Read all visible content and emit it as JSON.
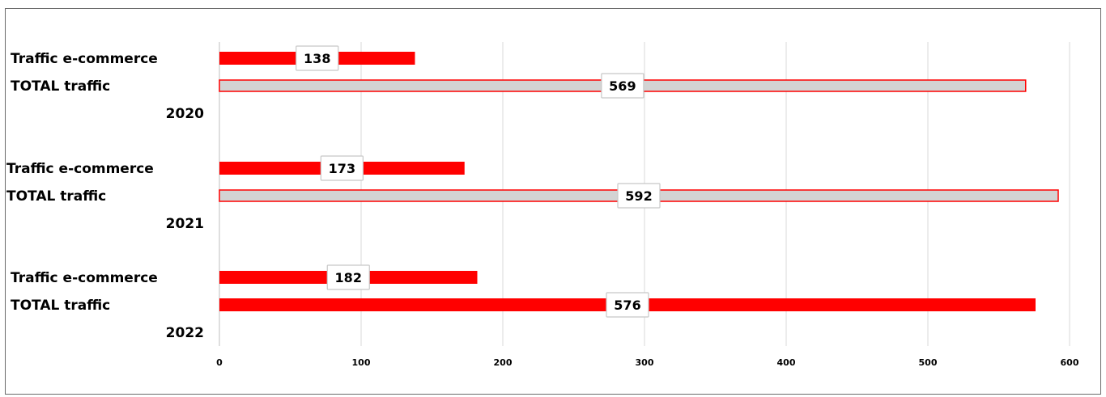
{
  "chart_data": {
    "type": "bar",
    "orientation": "horizontal",
    "xlim": [
      0,
      600
    ],
    "x_ticks": [
      0,
      100,
      200,
      300,
      400,
      500,
      600
    ],
    "grid": true,
    "groups": [
      {
        "year": "2020",
        "bars": [
          {
            "label": "Traffic e-commerce",
            "value": 138,
            "style": "solid"
          },
          {
            "label": "TOTAL traffic",
            "value": 569,
            "style": "outline"
          }
        ]
      },
      {
        "year": "2021",
        "bars": [
          {
            "label": "Traffic e-commerce",
            "value": 173,
            "style": "solid"
          },
          {
            "label": "TOTAL traffic",
            "value": 592,
            "style": "outline"
          }
        ]
      },
      {
        "year": "2022",
        "bars": [
          {
            "label": "Traffic e-commerce",
            "value": 182,
            "style": "solid"
          },
          {
            "label": "TOTAL traffic",
            "value": 576,
            "style": "solid"
          }
        ]
      }
    ],
    "colors": {
      "solid": "#ff0000",
      "outline_fill": "#d3d3d3",
      "outline_stroke": "#ff0000",
      "grid": "#d9d9d9",
      "label_box_border": "#c8c8c8"
    }
  }
}
